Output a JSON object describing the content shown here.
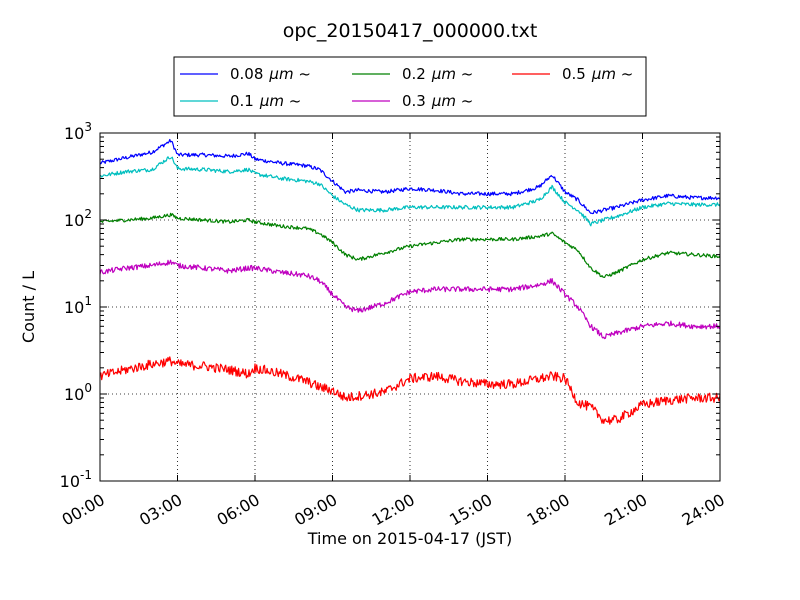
{
  "chart_data": {
    "type": "line",
    "title": "opc_20150417_000000.txt",
    "xlabel": "Time on 2015-04-17 (JST)",
    "ylabel": "Count / L",
    "yscale": "log",
    "ylim": [
      0.1,
      1000
    ],
    "xlim": [
      "00:00",
      "24:00"
    ],
    "grid": true,
    "legend_position": "top-center",
    "x_ticks": [
      "00:00",
      "03:00",
      "06:00",
      "09:00",
      "12:00",
      "15:00",
      "18:00",
      "21:00",
      "24:00"
    ],
    "y_ticks": [
      {
        "base": "10",
        "exp": "-1",
        "value": 0.1
      },
      {
        "base": "10",
        "exp": "0",
        "value": 1
      },
      {
        "base": "10",
        "exp": "1",
        "value": 10
      },
      {
        "base": "10",
        "exp": "2",
        "value": 100
      },
      {
        "base": "10",
        "exp": "3",
        "value": 1000
      }
    ],
    "x": [
      "00:00",
      "01:00",
      "02:00",
      "02:45",
      "03:00",
      "04:00",
      "05:00",
      "05:45",
      "06:00",
      "07:00",
      "08:00",
      "08:30",
      "09:00",
      "09:30",
      "10:00",
      "11:00",
      "12:00",
      "13:00",
      "14:00",
      "15:00",
      "16:00",
      "17:00",
      "17:30",
      "18:00",
      "18:30",
      "19:00",
      "19:30",
      "20:00",
      "21:00",
      "22:00",
      "23:00",
      "24:00"
    ],
    "series": [
      {
        "name": "0.08",
        "unit": "μm ~",
        "color": "#0000ff",
        "values": [
          450,
          520,
          600,
          820,
          560,
          560,
          540,
          580,
          500,
          450,
          420,
          380,
          280,
          210,
          220,
          210,
          230,
          220,
          200,
          200,
          200,
          240,
          330,
          210,
          170,
          120,
          130,
          140,
          170,
          190,
          180,
          180
        ]
      },
      {
        "name": "0.1",
        "unit": "μm ~",
        "color": "#00bfbf",
        "values": [
          320,
          360,
          380,
          540,
          390,
          380,
          360,
          380,
          340,
          300,
          280,
          260,
          190,
          150,
          130,
          130,
          140,
          140,
          140,
          140,
          140,
          170,
          240,
          160,
          130,
          90,
          100,
          110,
          140,
          155,
          150,
          150
        ]
      },
      {
        "name": "0.2",
        "unit": "μm ~",
        "color": "#008000",
        "values": [
          95,
          100,
          105,
          115,
          105,
          100,
          95,
          100,
          95,
          85,
          80,
          70,
          55,
          40,
          35,
          42,
          50,
          55,
          60,
          60,
          60,
          65,
          70,
          55,
          45,
          28,
          22,
          25,
          35,
          42,
          40,
          38
        ]
      },
      {
        "name": "0.3",
        "unit": "μm ~",
        "color": "#bf00bf",
        "values": [
          25,
          28,
          30,
          33,
          30,
          28,
          26,
          28,
          28,
          25,
          23,
          20,
          14,
          10,
          9,
          11,
          15,
          16,
          16,
          16,
          16,
          18,
          20,
          14,
          10,
          6,
          4.5,
          5,
          6,
          6.5,
          6,
          6
        ]
      },
      {
        "name": "0.5",
        "unit": "μm ~",
        "color": "#ff0000",
        "values": [
          1.6,
          1.9,
          2.2,
          2.4,
          2.2,
          2.1,
          1.9,
          1.7,
          2,
          1.7,
          1.4,
          1.2,
          1.1,
          0.9,
          0.95,
          1.05,
          1.5,
          1.6,
          1.4,
          1.3,
          1.3,
          1.5,
          1.6,
          1.5,
          0.8,
          0.7,
          0.5,
          0.5,
          0.75,
          0.85,
          0.9,
          0.9
        ]
      }
    ]
  }
}
